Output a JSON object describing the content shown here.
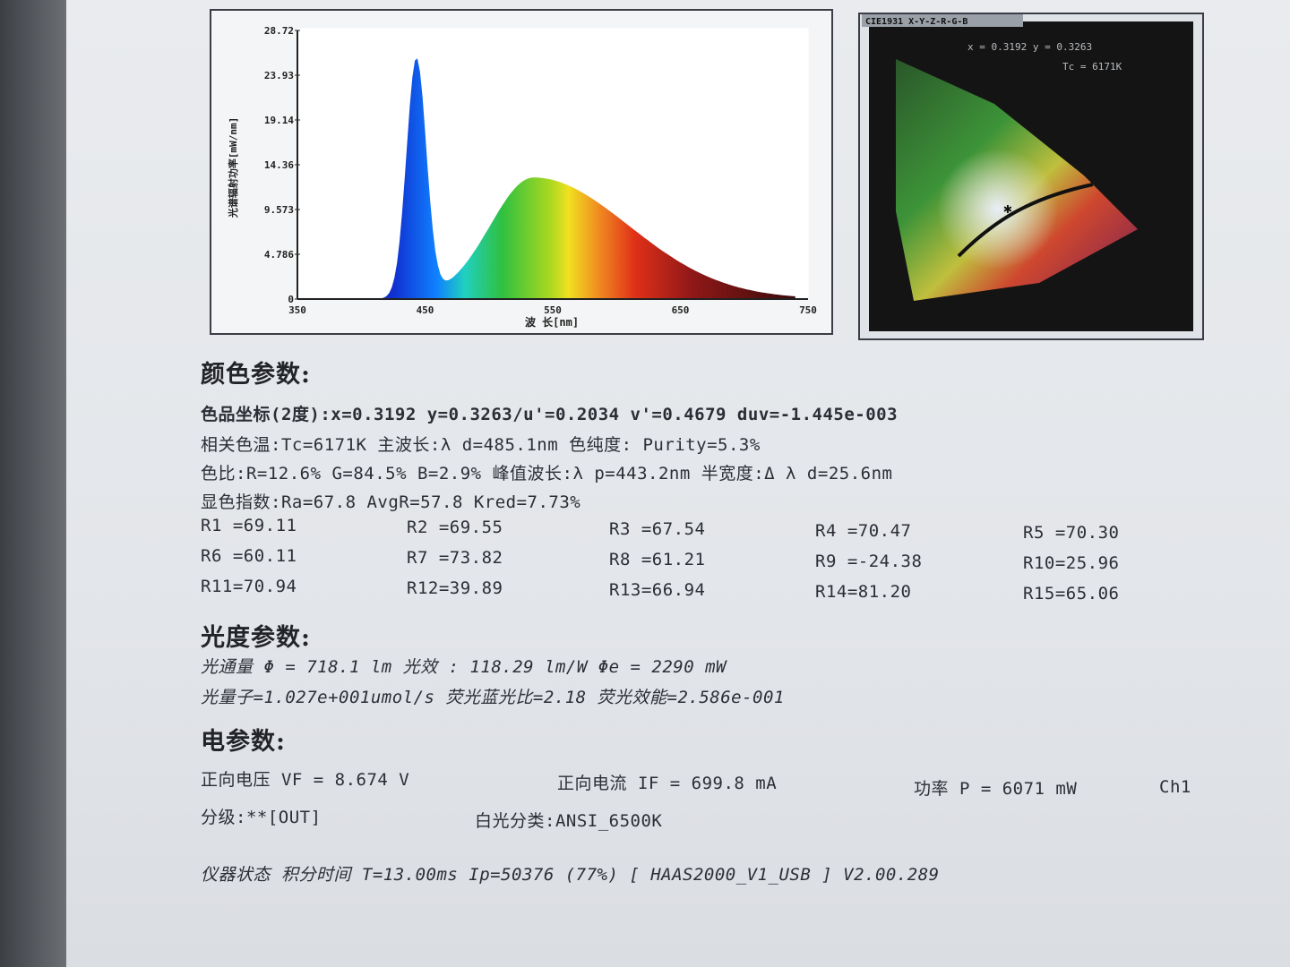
{
  "spectrum": {
    "y_ticks": [
      "28.72",
      "23.93",
      "19.14",
      "14.36",
      "9.573",
      "4.786",
      "0"
    ],
    "x_ticks": [
      "350",
      "450",
      "550",
      "650",
      "750"
    ],
    "ylabel": "光谱辐射功率[mW/nm]",
    "xlabel": "波 长[nm]"
  },
  "cie": {
    "title": "CIE1931 X-Y-Z-R-G-B",
    "coords": "x = 0.3192  y = 0.3263",
    "tc": "Tc = 6171K"
  },
  "color_params": {
    "heading": "颜色参数:",
    "line1": "色品坐标(2度):x=0.3192  y=0.3263/u'=0.2034  v'=0.4679  duv=-1.445e-003",
    "line2": "相关色温:Tc=6171K  主波长:λ d=485.1nm 色纯度: Purity=5.3%",
    "line3": "色比:R=12.6% G=84.5% B=2.9%  峰值波长:λ p=443.2nm 半宽度:Δ λ d=25.6nm",
    "line4": "显色指数:Ra=67.8  AvgR=57.8  Kred=7.73%",
    "r_values": [
      "R1 =69.11",
      "R2 =69.55",
      "R3 =67.54",
      "R4 =70.47",
      "R5 =70.30",
      "R6 =60.11",
      "R7 =73.82",
      "R8 =61.21",
      "R9 =-24.38",
      "R10=25.96",
      "R11=70.94",
      "R12=39.89",
      "R13=66.94",
      "R14=81.20",
      "R15=65.06"
    ]
  },
  "photo_params": {
    "heading": "光度参数:",
    "line1": "光通量  Φ  = 718.1 lm   光效 : 118.29 lm/W  Φe = 2290 mW",
    "line2": "光量子=1.027e+001umol/s 荧光蓝光比=2.18 荧光效能=2.586e-001"
  },
  "elec_params": {
    "heading": "电参数:",
    "vf": "正向电压 VF = 8.674 V",
    "if": "正向电流 IF = 699.8 mA",
    "power": "功率 P = 6071 mW",
    "channel": "Ch1",
    "bin": "分级:**[OUT]",
    "white_class": "白光分类:ANSI_6500K"
  },
  "status": {
    "text": "仪器状态  积分时间 T=13.00ms  Ip=50376 (77%)   [ HAAS2000_V1_USB ] V2.00.289"
  },
  "colors": {
    "blue_peak": "#1f3fd0",
    "text": "#2b2e35"
  }
}
